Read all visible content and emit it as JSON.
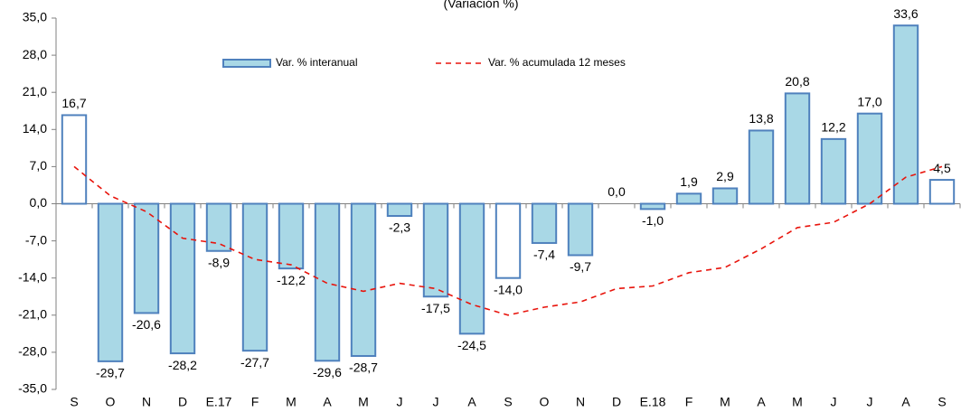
{
  "chart_data": {
    "type": "bar",
    "subtitle": "(Variación %)",
    "categories": [
      "S",
      "O",
      "N",
      "D",
      "E.17",
      "F",
      "M",
      "A",
      "M",
      "J",
      "J",
      "A",
      "S",
      "O",
      "N",
      "D",
      "E.18",
      "F",
      "M",
      "A",
      "M",
      "J",
      "J",
      "A",
      "S"
    ],
    "series": [
      {
        "name": "Var. % interanual",
        "type": "bar",
        "color": "#a9d8e6",
        "edge_color": "#4f81bd",
        "colors": [
          "#ffffff",
          "#a9d8e6",
          "#a9d8e6",
          "#a9d8e6",
          "#a9d8e6",
          "#a9d8e6",
          "#a9d8e6",
          "#a9d8e6",
          "#a9d8e6",
          "#a9d8e6",
          "#a9d8e6",
          "#a9d8e6",
          "#ffffff",
          "#a9d8e6",
          "#a9d8e6",
          "#a9d8e6",
          "#a9d8e6",
          "#a9d8e6",
          "#a9d8e6",
          "#a9d8e6",
          "#a9d8e6",
          "#a9d8e6",
          "#a9d8e6",
          "#a9d8e6",
          "#ffffff"
        ],
        "values": [
          16.7,
          -29.7,
          -20.6,
          -28.2,
          -8.9,
          -27.7,
          -12.2,
          -29.6,
          -28.7,
          -2.3,
          -17.5,
          -24.5,
          -14.0,
          -7.4,
          -9.7,
          0.0,
          -1.0,
          1.9,
          2.9,
          13.8,
          20.8,
          12.2,
          17.0,
          33.6,
          4.5
        ],
        "value_labels": [
          "16,7",
          "-29,7",
          "-20,6",
          "-28,2",
          "-8,9",
          "-27,7",
          "-12,2",
          "-29,6",
          "-28,7",
          "-2,3",
          "-17,5",
          "-24,5",
          "-14,0",
          "-7,4",
          "-9,7",
          "0,0",
          "-1,0",
          "1,9",
          "2,9",
          "13,8",
          "20,8",
          "12,2",
          "17,0",
          "33,6",
          "4,5"
        ]
      },
      {
        "name": "Var. % acumulada 12 meses",
        "type": "line",
        "color": "#e8140c",
        "dashed": true,
        "values": [
          7.0,
          1.5,
          -1.5,
          -6.5,
          -7.5,
          -10.5,
          -11.5,
          -15.0,
          -16.5,
          -15.0,
          -16.0,
          -19.0,
          -21.0,
          -19.5,
          -18.5,
          -16.0,
          -15.5,
          -13.0,
          -12.0,
          -8.5,
          -4.5,
          -3.5,
          0.0,
          5.0,
          7.0
        ]
      }
    ],
    "ylim": [
      -35,
      35
    ],
    "yticks": [
      {
        "value": -35,
        "label": "-35,0"
      },
      {
        "value": -28,
        "label": "-28,0"
      },
      {
        "value": -21,
        "label": "-21,0"
      },
      {
        "value": -14,
        "label": "-14,0"
      },
      {
        "value": -7,
        "label": "-7,0"
      },
      {
        "value": 0,
        "label": "0,0"
      },
      {
        "value": 7,
        "label": "7,0"
      },
      {
        "value": 14,
        "label": "14,0"
      },
      {
        "value": 21,
        "label": "21,0"
      },
      {
        "value": 28,
        "label": "28,0"
      },
      {
        "value": 35,
        "label": "35,0"
      }
    ],
    "legend": "top",
    "grid": false
  }
}
